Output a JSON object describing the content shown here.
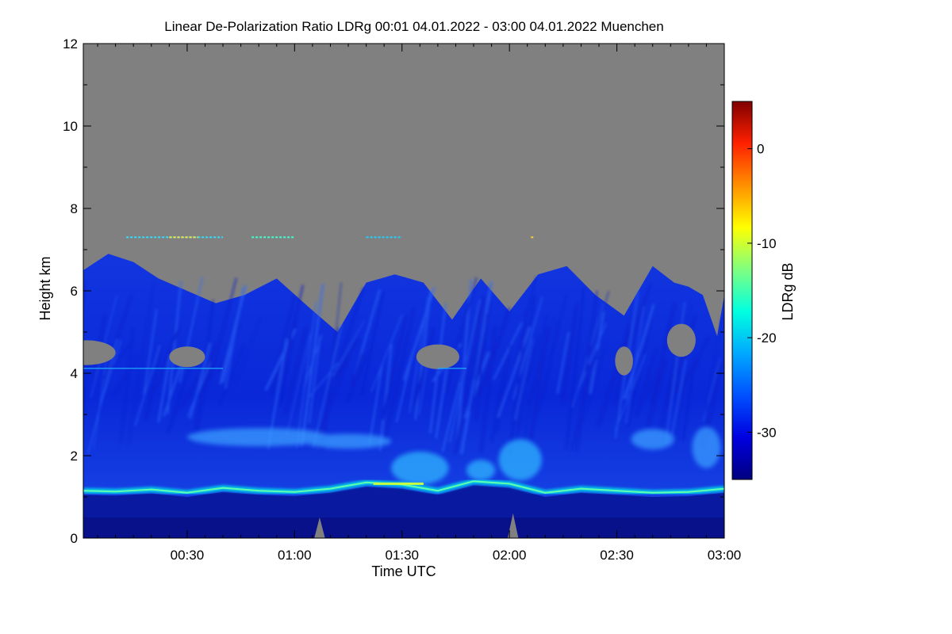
{
  "chart_data": {
    "type": "heatmap",
    "title": "Linear De-Polarization Ratio LDRg   00:01 04.01.2022 - 03:00 04.01.2022 Muenchen",
    "xlabel": "Time UTC",
    "ylabel": "Height km",
    "x_range": [
      "00:01",
      "03:00"
    ],
    "x_ticks": [
      "00:30",
      "01:00",
      "01:30",
      "02:00",
      "02:30",
      "03:00"
    ],
    "x_tick_minutes": [
      30,
      60,
      90,
      120,
      150,
      180
    ],
    "x_range_minutes": [
      1,
      180
    ],
    "y_range": [
      0,
      12
    ],
    "y_ticks": [
      0,
      2,
      4,
      6,
      8,
      10,
      12
    ],
    "colorbar": {
      "label": "LDRg dB",
      "range": [
        -35,
        5
      ],
      "ticks": [
        0,
        -10,
        -20,
        -30
      ],
      "colormap": [
        "#000080",
        "#0000e0",
        "#0050ff",
        "#00a8ff",
        "#00ffe0",
        "#80ff80",
        "#ffff00",
        "#ff9000",
        "#ff2000",
        "#800000"
      ]
    },
    "no_data_color": "#808080",
    "cloud_top_km": [
      6.5,
      6.9,
      6.7,
      6.3,
      6.0,
      5.7,
      5.9,
      6.3,
      5.6,
      5.0,
      6.2,
      6.4,
      6.2,
      5.3,
      6.3,
      5.5,
      6.4,
      6.6,
      5.9,
      5.4,
      6.6,
      6.2,
      6.1,
      5.9,
      4.9,
      5.9,
      6.5
    ],
    "cloud_top_times_min": [
      1,
      8,
      15,
      22,
      30,
      38,
      46,
      55,
      64,
      72,
      80,
      88,
      96,
      104,
      112,
      120,
      128,
      136,
      144,
      152,
      160,
      166,
      170,
      174,
      178,
      180,
      180
    ],
    "boundary_layer_top_km": [
      1.15,
      1.13,
      1.18,
      1.1,
      1.22,
      1.15,
      1.12,
      1.2,
      1.35,
      1.3,
      1.15,
      1.38,
      1.32,
      1.1,
      1.2,
      1.15,
      1.1,
      1.12,
      1.2
    ],
    "boundary_layer_times_min": [
      1,
      10,
      20,
      30,
      40,
      50,
      60,
      70,
      80,
      90,
      100,
      110,
      120,
      130,
      140,
      150,
      160,
      170,
      180
    ],
    "layer_7km_height_km": 7.3
  }
}
